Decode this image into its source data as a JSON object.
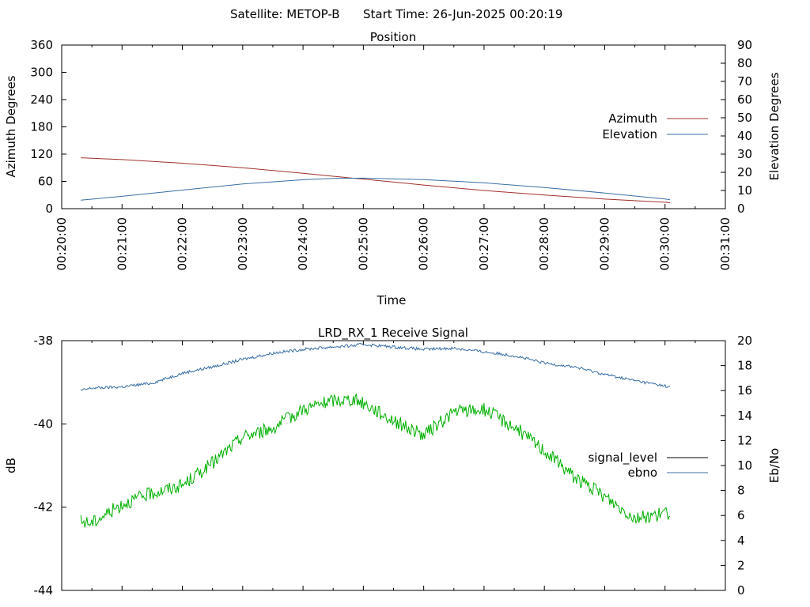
{
  "header": {
    "satellite": "Satellite: METOP-B",
    "start_time": "Start Time: 26-Jun-2025 00:20:19"
  },
  "chart_data": [
    {
      "type": "line",
      "title": "Position",
      "xlabel": "Time",
      "ylabel": "Azimuth Degrees",
      "y2label": "Elevation Degrees",
      "xlim": [
        "00:20:00",
        "00:31:00"
      ],
      "x_ticks": [
        "00:20:00",
        "00:21:00",
        "00:22:00",
        "00:23:00",
        "00:24:00",
        "00:25:00",
        "00:26:00",
        "00:27:00",
        "00:28:00",
        "00:29:00",
        "00:30:00",
        "00:31:00"
      ],
      "ylim": [
        0,
        360
      ],
      "y_ticks": [
        "0",
        "60",
        "120",
        "180",
        "240",
        "300",
        "360"
      ],
      "y2lim": [
        0,
        90
      ],
      "y2_ticks": [
        "0",
        "10",
        "20",
        "30",
        "40",
        "50",
        "60",
        "70",
        "80",
        "90"
      ],
      "legend_position": "right",
      "series": [
        {
          "name": "Azimuth",
          "axis": "y1",
          "color": "#a0302c",
          "x": [
            "00:20:19",
            "00:21:00",
            "00:22:00",
            "00:23:00",
            "00:24:00",
            "00:24:50",
            "00:25:00",
            "00:26:00",
            "00:27:00",
            "00:28:00",
            "00:29:00",
            "00:30:00",
            "00:30:05"
          ],
          "values": [
            112,
            108,
            100,
            90,
            78,
            67,
            65,
            52,
            40,
            30,
            21,
            14,
            13
          ]
        },
        {
          "name": "Elevation",
          "axis": "y2",
          "color": "#3a6fa5",
          "x": [
            "00:20:19",
            "00:21:00",
            "00:22:00",
            "00:23:00",
            "00:24:00",
            "00:24:30",
            "00:25:00",
            "00:26:00",
            "00:27:00",
            "00:28:00",
            "00:29:00",
            "00:30:00",
            "00:30:05"
          ],
          "values": [
            4.7,
            6.8,
            10.2,
            13.6,
            15.9,
            16.6,
            16.8,
            16.0,
            14.2,
            11.6,
            8.6,
            5.3,
            4.9
          ]
        }
      ]
    },
    {
      "type": "line",
      "title": "LRD_RX_1 Receive Signal",
      "ylabel": "dB",
      "y2label": "Eb/No",
      "xlim": [
        "00:20:00",
        "00:31:00"
      ],
      "ylim": [
        -44,
        -38
      ],
      "y_ticks": [
        "-44",
        "-42",
        "-40",
        "-38"
      ],
      "y2lim": [
        0,
        20
      ],
      "y2_ticks": [
        "0",
        "2",
        "4",
        "6",
        "8",
        "10",
        "12",
        "14",
        "16",
        "18",
        "20"
      ],
      "legend_position": "right",
      "series": [
        {
          "name": "signal_level",
          "axis": "y1",
          "color": "#000000",
          "x": [],
          "values": []
        },
        {
          "name": "ebno",
          "axis": "y2",
          "color": "#3a6fa5",
          "x": [
            "00:20:19",
            "00:20:30",
            "00:21:00",
            "00:21:30",
            "00:22:00",
            "00:22:30",
            "00:23:00",
            "00:23:30",
            "00:24:00",
            "00:24:30",
            "00:24:50",
            "00:25:00",
            "00:25:30",
            "00:26:00",
            "00:26:30",
            "00:27:00",
            "00:27:30",
            "00:28:00",
            "00:28:30",
            "00:29:00",
            "00:29:30",
            "00:30:05"
          ],
          "values": [
            16.0,
            16.2,
            16.3,
            16.6,
            17.4,
            17.9,
            18.5,
            19.0,
            19.3,
            19.5,
            19.6,
            19.7,
            19.5,
            19.3,
            19.4,
            19.1,
            18.8,
            18.2,
            17.9,
            17.3,
            16.8,
            16.3
          ]
        },
        {
          "name": "",
          "axis": "y2",
          "color": "#00b000",
          "x": [
            "00:20:19",
            "00:20:30",
            "00:21:00",
            "00:21:30",
            "00:22:00",
            "00:22:30",
            "00:23:00",
            "00:23:30",
            "00:24:00",
            "00:24:30",
            "00:24:50",
            "00:25:00",
            "00:25:30",
            "00:26:00",
            "00:26:30",
            "00:27:00",
            "00:27:30",
            "00:28:00",
            "00:28:30",
            "00:29:00",
            "00:29:30",
            "00:30:05"
          ],
          "values": [
            5.5,
            5.4,
            6.9,
            7.8,
            8.4,
            10.2,
            12.3,
            13.0,
            14.5,
            15.2,
            15.3,
            15.0,
            13.6,
            12.4,
            14.3,
            14.5,
            13.1,
            11.2,
            9.1,
            7.5,
            5.8,
            6.2
          ]
        }
      ]
    }
  ]
}
